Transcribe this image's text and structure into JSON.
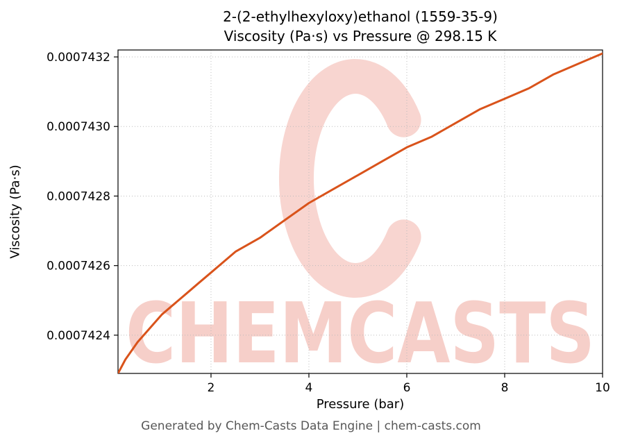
{
  "title_line1": "2-(2-ethylhexyloxy)ethanol (1559-35-9)",
  "title_line2": "Viscosity (Pa·s) vs Pressure @ 298.15 K",
  "footer": "Generated by Chem-Casts Data Engine | chem-casts.com",
  "watermark": {
    "text": "CHEMCASTS",
    "color": "#f6cac4"
  },
  "chart_data": {
    "type": "line",
    "title": "2-(2-ethylhexyloxy)ethanol (1559-35-9) Viscosity (Pa·s) vs Pressure @ 298.15 K",
    "xlabel": "Pressure (bar)",
    "ylabel": "Viscosity (Pa·s)",
    "xlim": [
      0.1,
      10
    ],
    "ylim": [
      0.00074229,
      0.00074322
    ],
    "x_ticks": [
      2,
      4,
      6,
      8,
      10
    ],
    "y_ticks": [
      0.0007424,
      0.0007426,
      0.0007428,
      0.000743,
      0.0007432
    ],
    "grid": true,
    "legend": "none",
    "line_color": "#d9531b",
    "series": [
      {
        "name": "viscosity",
        "x": [
          0.1,
          0.25,
          0.5,
          0.75,
          1,
          1.25,
          1.5,
          1.75,
          2,
          2.5,
          3,
          3.5,
          4,
          4.5,
          5,
          5.5,
          6,
          6.5,
          7,
          7.5,
          8,
          8.5,
          9,
          9.5,
          10
        ],
        "y": [
          0.00074229,
          0.00074233,
          0.00074238,
          0.00074242,
          0.00074246,
          0.00074249,
          0.00074252,
          0.00074255,
          0.00074258,
          0.00074264,
          0.00074268,
          0.00074273,
          0.00074278,
          0.00074282,
          0.00074286,
          0.0007429,
          0.00074294,
          0.00074297,
          0.00074301,
          0.00074305,
          0.00074308,
          0.00074311,
          0.00074315,
          0.00074318,
          0.00074321
        ]
      }
    ]
  }
}
